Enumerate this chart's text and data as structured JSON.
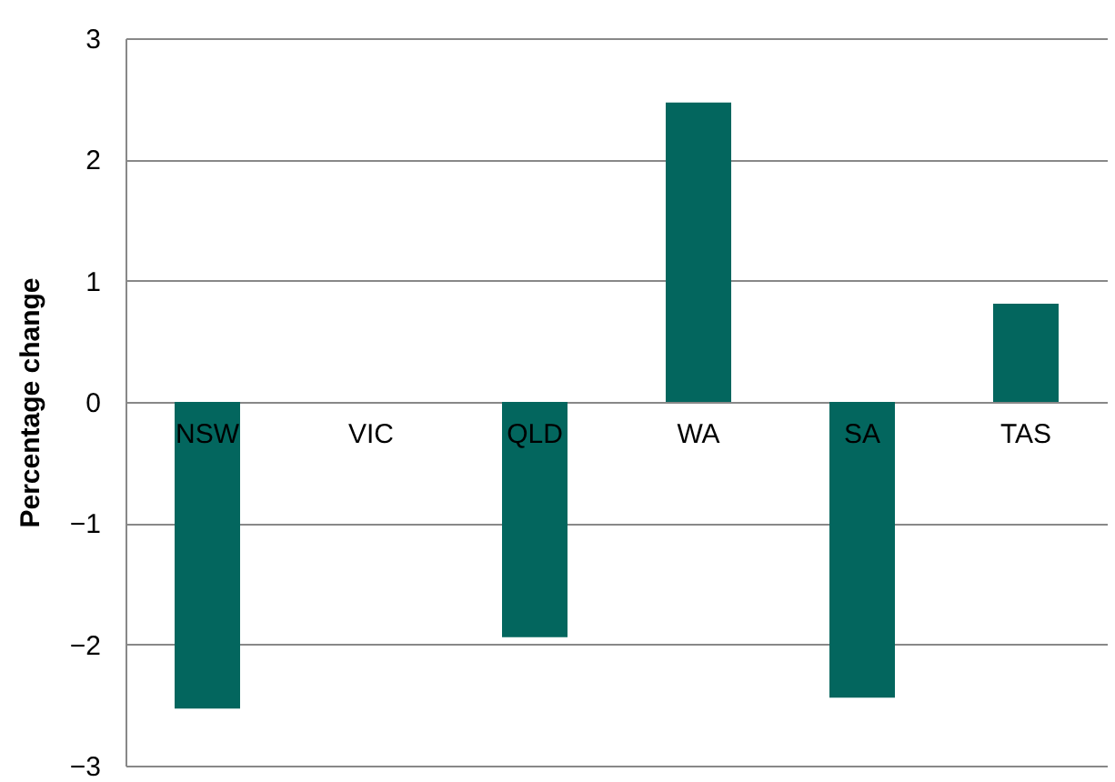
{
  "chart_data": {
    "type": "bar",
    "ylabel": "Percentage change",
    "categories": [
      "NSW",
      "VIC",
      "QLD",
      "WA",
      "SA",
      "TAS"
    ],
    "values": [
      -2.53,
      0,
      -1.94,
      2.47,
      -2.44,
      0.81
    ],
    "color": "#03665e",
    "ylim": [
      -3,
      3
    ],
    "yticks": [
      -3,
      -2,
      -1,
      0,
      1,
      2,
      3
    ],
    "grid": "y"
  }
}
